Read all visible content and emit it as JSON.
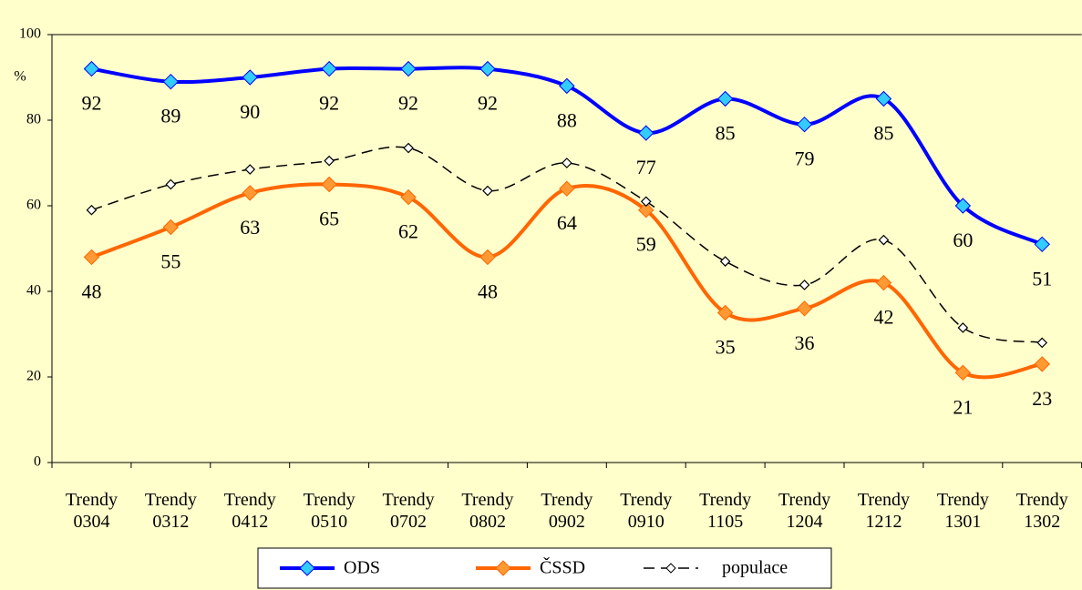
{
  "chart_data": {
    "type": "line",
    "y_label": "%",
    "categories": [
      "Trendy 0304",
      "Trendy 0312",
      "Trendy 0412",
      "Trendy 0510",
      "Trendy 0702",
      "Trendy 0802",
      "Trendy 0902",
      "Trendy 0910",
      "Trendy 1105",
      "Trendy 1204",
      "Trendy 1212",
      "Trendy 1301",
      "Trendy 1302"
    ],
    "series": [
      {
        "name": "ODS",
        "color": "#0000ff",
        "marker_color": "#33ccff",
        "dashed": false,
        "labels": true,
        "values": [
          92,
          89,
          90,
          92,
          92,
          92,
          88,
          77,
          85,
          79,
          85,
          60,
          51
        ]
      },
      {
        "name": "ČSSD",
        "color": "#ff6600",
        "marker_color": "#ff9933",
        "dashed": false,
        "labels": true,
        "values": [
          48,
          55,
          63,
          65,
          62,
          48,
          64,
          59,
          35,
          36,
          42,
          21,
          23
        ]
      },
      {
        "name": "populace",
        "color": "#000000",
        "marker_color": "#ffffff",
        "dashed": true,
        "labels": false,
        "values": [
          59,
          65,
          68.5,
          70.5,
          73.5,
          63.5,
          70,
          61,
          47,
          41.5,
          52,
          31.5,
          28
        ]
      }
    ],
    "ylim": [
      0,
      100
    ],
    "yticks": [
      0,
      20,
      40,
      60,
      80,
      100
    ],
    "legend": "bottom",
    "smooth": true
  }
}
